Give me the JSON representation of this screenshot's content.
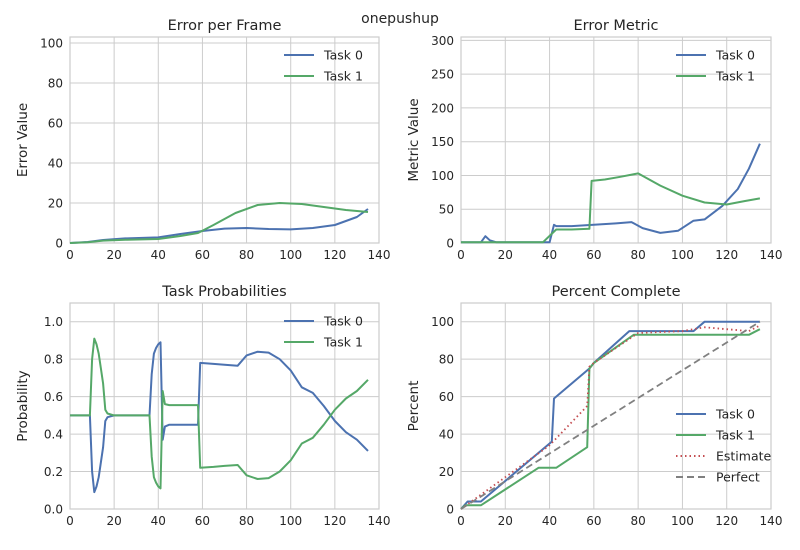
{
  "suptitle": "onepushup",
  "palette": {
    "task0": "#4c72b0",
    "task1": "#55a868",
    "estimate": "#c44e52",
    "perfect": "#808080",
    "grid": "#cccccc"
  },
  "chart_data": [
    {
      "type": "line",
      "title": "Error per Frame",
      "xlabel": "",
      "ylabel": "Error Value",
      "xlim": [
        0,
        140
      ],
      "ylim": [
        0,
        103
      ],
      "xticks": [
        0,
        20,
        40,
        60,
        80,
        100,
        120,
        140
      ],
      "yticks": [
        0,
        20,
        40,
        60,
        80,
        100
      ],
      "legend": "top-right",
      "grid": true,
      "series": [
        {
          "name": "Task 0",
          "color": "task0",
          "style": "solid",
          "x": [
            0,
            8,
            15,
            25,
            40,
            50,
            60,
            70,
            80,
            90,
            100,
            110,
            120,
            130,
            135
          ],
          "y": [
            0,
            0.5,
            1.5,
            2.3,
            2.8,
            4.5,
            6.0,
            7.2,
            7.5,
            7.0,
            6.8,
            7.5,
            9.0,
            13.0,
            17.0
          ]
        },
        {
          "name": "Task 1",
          "color": "task1",
          "style": "solid",
          "x": [
            0,
            8,
            15,
            25,
            40,
            50,
            58,
            65,
            75,
            85,
            95,
            105,
            115,
            125,
            135
          ],
          "y": [
            0,
            0.4,
            1.2,
            1.6,
            2.0,
            3.5,
            5.0,
            9.0,
            15.0,
            19.0,
            20.0,
            19.5,
            18.0,
            16.5,
            15.5
          ]
        }
      ]
    },
    {
      "type": "line",
      "title": "Error Metric",
      "xlabel": "",
      "ylabel": "Metric Value",
      "xlim": [
        0,
        140
      ],
      "ylim": [
        0,
        305
      ],
      "xticks": [
        0,
        20,
        40,
        60,
        80,
        100,
        120,
        140
      ],
      "yticks": [
        0,
        50,
        100,
        150,
        200,
        250,
        300
      ],
      "legend": "top-right",
      "grid": true,
      "series": [
        {
          "name": "Task 0",
          "color": "task0",
          "style": "solid",
          "x": [
            0,
            9,
            11,
            13,
            16,
            40,
            42,
            43,
            50,
            60,
            70,
            77,
            82,
            90,
            98,
            105,
            110,
            118,
            125,
            130,
            135
          ],
          "y": [
            1,
            1,
            10,
            4,
            1,
            1,
            27,
            25,
            25,
            27,
            29,
            31,
            22,
            15,
            18,
            33,
            35,
            55,
            80,
            110,
            147
          ]
        },
        {
          "name": "Task 1",
          "color": "task1",
          "style": "solid",
          "x": [
            0,
            37,
            43,
            50,
            58,
            59,
            65,
            72,
            80,
            90,
            100,
            110,
            120,
            128,
            135
          ],
          "y": [
            1,
            1,
            20,
            20,
            21,
            92,
            94,
            98,
            103,
            85,
            70,
            60,
            57,
            62,
            66
          ]
        }
      ]
    },
    {
      "type": "line",
      "title": "Task Probabilities",
      "xlabel": "",
      "ylabel": "Probability",
      "xlim": [
        0,
        140
      ],
      "ylim": [
        0,
        1.1
      ],
      "xticks": [
        0,
        20,
        40,
        60,
        80,
        100,
        120,
        140
      ],
      "yticks": [
        0.0,
        0.2,
        0.4,
        0.6,
        0.8,
        1.0
      ],
      "legend": "top-right",
      "grid": true,
      "series": [
        {
          "name": "Task 0",
          "color": "task0",
          "style": "solid",
          "x": [
            0,
            9,
            10,
            11,
            12,
            13,
            14,
            15,
            16,
            17,
            20,
            36,
            37,
            38,
            39,
            40,
            41,
            42,
            43,
            45,
            58,
            59,
            65,
            70,
            76,
            80,
            85,
            90,
            95,
            100,
            105,
            110,
            115,
            120,
            125,
            130,
            135
          ],
          "y": [
            0.5,
            0.5,
            0.2,
            0.09,
            0.12,
            0.17,
            0.25,
            0.33,
            0.47,
            0.49,
            0.5,
            0.5,
            0.72,
            0.83,
            0.86,
            0.88,
            0.89,
            0.37,
            0.44,
            0.45,
            0.45,
            0.78,
            0.775,
            0.77,
            0.765,
            0.82,
            0.84,
            0.835,
            0.8,
            0.74,
            0.65,
            0.62,
            0.55,
            0.47,
            0.41,
            0.37,
            0.31
          ]
        },
        {
          "name": "Task 1",
          "color": "task1",
          "style": "solid",
          "x": [
            0,
            9,
            10,
            11,
            12,
            13,
            14,
            15,
            16,
            17,
            20,
            36,
            37,
            38,
            39,
            40,
            41,
            42,
            43,
            45,
            58,
            59,
            65,
            70,
            76,
            80,
            85,
            90,
            95,
            100,
            105,
            110,
            115,
            120,
            125,
            130,
            135
          ],
          "y": [
            0.5,
            0.5,
            0.8,
            0.91,
            0.88,
            0.83,
            0.75,
            0.67,
            0.53,
            0.51,
            0.5,
            0.5,
            0.28,
            0.17,
            0.14,
            0.12,
            0.11,
            0.63,
            0.56,
            0.555,
            0.555,
            0.22,
            0.225,
            0.23,
            0.235,
            0.18,
            0.16,
            0.165,
            0.2,
            0.26,
            0.35,
            0.38,
            0.45,
            0.53,
            0.59,
            0.63,
            0.69
          ]
        }
      ]
    },
    {
      "type": "line",
      "title": "Percent Complete",
      "xlabel": "",
      "ylabel": "Percent",
      "xlim": [
        0,
        140
      ],
      "ylim": [
        0,
        110
      ],
      "xticks": [
        0,
        20,
        40,
        60,
        80,
        100,
        120,
        140
      ],
      "yticks": [
        0,
        20,
        40,
        60,
        80,
        100
      ],
      "legend": "bottom-right",
      "grid": true,
      "series": [
        {
          "name": "Task 0",
          "color": "task0",
          "style": "solid",
          "x": [
            0,
            3,
            9,
            41,
            42,
            58,
            60,
            76,
            105,
            110,
            135
          ],
          "y": [
            0,
            4,
            4,
            36,
            59,
            75,
            78,
            95,
            95,
            100,
            100
          ]
        },
        {
          "name": "Task 1",
          "color": "task1",
          "style": "solid",
          "x": [
            0,
            2,
            9,
            35,
            43,
            57,
            58,
            60,
            78,
            105,
            110,
            130,
            135
          ],
          "y": [
            0,
            2,
            2,
            22,
            22,
            33,
            75,
            78,
            93,
            93,
            93,
            93,
            96
          ]
        },
        {
          "name": "Estimate",
          "color": "estimate",
          "style": "dotted",
          "x": [
            0,
            20,
            40,
            57,
            58,
            60,
            80,
            100,
            110,
            120,
            130,
            135
          ],
          "y": [
            0,
            17,
            34,
            55,
            76,
            78,
            94,
            95,
            97,
            96,
            95,
            98
          ]
        },
        {
          "name": "Perfect",
          "color": "perfect",
          "style": "dashed",
          "x": [
            0,
            135
          ],
          "y": [
            0,
            100
          ]
        }
      ]
    }
  ]
}
